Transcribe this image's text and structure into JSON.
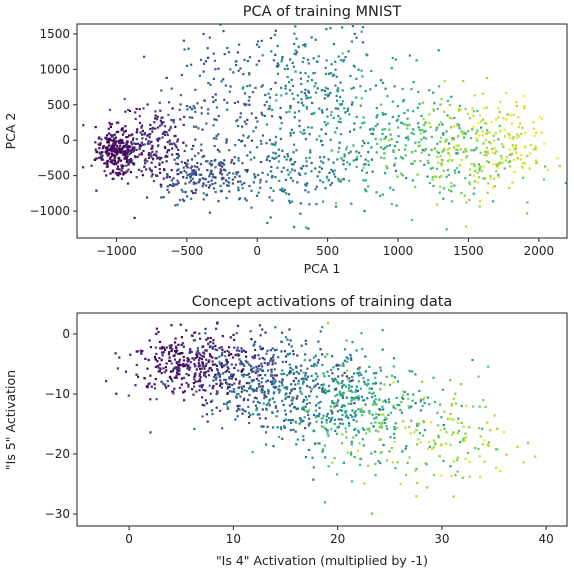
{
  "chart_data": [
    {
      "type": "scatter",
      "title": "PCA of training MNIST",
      "xlabel": "PCA 1",
      "ylabel": "PCA 2",
      "xlim": [
        -1280,
        2200
      ],
      "ylim": [
        -1380,
        1640
      ],
      "xticks": [
        -1000,
        -500,
        0,
        500,
        1000,
        1500,
        2000
      ],
      "xtick_labels": [
        "−1000",
        "−500",
        "0",
        "500",
        "1000",
        "1500",
        "2000"
      ],
      "yticks": [
        1500,
        1000,
        500,
        0,
        -500,
        -1000
      ],
      "ytick_labels": [
        "1500",
        "1000",
        "500",
        "0",
        "−500",
        "−1000"
      ],
      "colormap": "viridis",
      "grid": false,
      "point_color": "first-coordinate (viridis: dark purple at left, yellow-green at right)",
      "clusters": [
        {
          "cx": -1000,
          "cy": -150,
          "sx": 70,
          "sy": 150,
          "n": 260,
          "c": 0.02
        },
        {
          "cx": -780,
          "cy": -50,
          "sx": 160,
          "sy": 260,
          "n": 220,
          "c": 0.1
        },
        {
          "cx": -420,
          "cy": -500,
          "sx": 170,
          "sy": 160,
          "n": 180,
          "c": 0.22
        },
        {
          "cx": -200,
          "cy": 550,
          "sx": 300,
          "sy": 500,
          "n": 180,
          "c": 0.28
        },
        {
          "cx": 200,
          "cy": -450,
          "sx": 300,
          "sy": 300,
          "n": 200,
          "c": 0.38
        },
        {
          "cx": 350,
          "cy": 900,
          "sx": 250,
          "sy": 400,
          "n": 170,
          "c": 0.45
        },
        {
          "cx": 800,
          "cy": 200,
          "sx": 300,
          "sy": 600,
          "n": 200,
          "c": 0.58
        },
        {
          "cx": 1200,
          "cy": -200,
          "sx": 300,
          "sy": 400,
          "n": 180,
          "c": 0.72
        },
        {
          "cx": 1550,
          "cy": -100,
          "sx": 200,
          "sy": 380,
          "n": 160,
          "c": 0.86
        },
        {
          "cx": 1800,
          "cy": 50,
          "sx": 150,
          "sy": 300,
          "n": 80,
          "c": 0.95
        }
      ]
    },
    {
      "type": "scatter",
      "title": "Concept activations of training data",
      "xlabel": "\"Is 4\" Activation (multiplied by -1)",
      "ylabel": "\"Is 5\" Activation",
      "xlim": [
        -5,
        42
      ],
      "ylim": [
        -32,
        3.5
      ],
      "xticks": [
        0,
        10,
        20,
        30,
        40
      ],
      "xtick_labels": [
        "0",
        "10",
        "20",
        "30",
        "40"
      ],
      "yticks": [
        0,
        -10,
        -20,
        -30
      ],
      "ytick_labels": [
        "0",
        "−10",
        "−20",
        "−30"
      ],
      "colormap": "viridis",
      "grid": false,
      "point_color": "same points as the PCA plot (purple cluster upper-left, yellow-green toward lower-right)",
      "clusters": [
        {
          "cx": 6,
          "cy": -5,
          "sx": 3,
          "sy": 2.5,
          "n": 320,
          "c": 0.05
        },
        {
          "cx": 11,
          "cy": -7,
          "sx": 4,
          "sy": 3.5,
          "n": 260,
          "c": 0.2
        },
        {
          "cx": 15,
          "cy": -9,
          "sx": 4,
          "sy": 4,
          "n": 260,
          "c": 0.35
        },
        {
          "cx": 19,
          "cy": -11,
          "sx": 4,
          "sy": 4,
          "n": 220,
          "c": 0.5
        },
        {
          "cx": 23,
          "cy": -13,
          "sx": 4,
          "sy": 5,
          "n": 180,
          "c": 0.65
        },
        {
          "cx": 27,
          "cy": -16,
          "sx": 4,
          "sy": 5,
          "n": 120,
          "c": 0.8
        },
        {
          "cx": 31,
          "cy": -19,
          "sx": 4,
          "sy": 4,
          "n": 60,
          "c": 0.9
        }
      ]
    }
  ]
}
